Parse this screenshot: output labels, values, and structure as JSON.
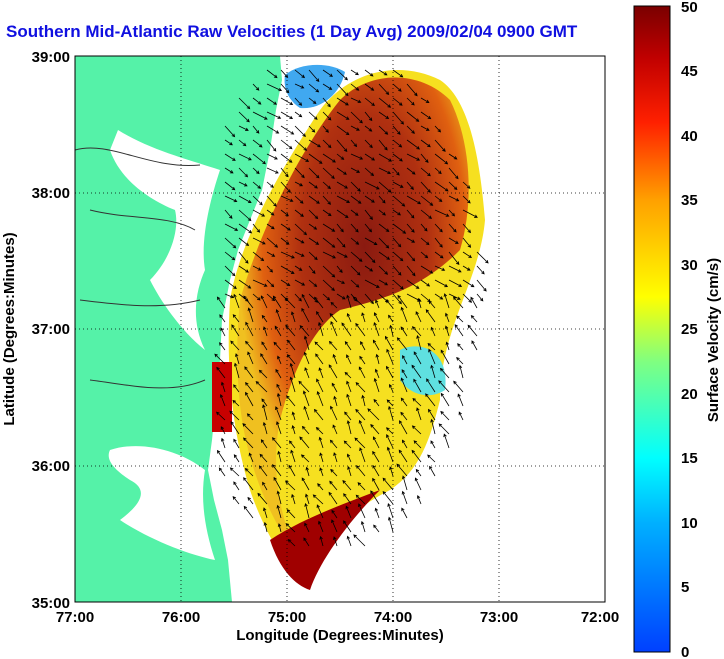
{
  "title": "Southern Mid-Atlantic Raw Velocities (1 Day Avg) 2009/02/04 0900 GMT",
  "map": {
    "xlabel": "Longitude (Degrees:Minutes)",
    "ylabel": "Latitude (Degrees:Minutes)",
    "lon_ticks": [
      "77:00",
      "76:00",
      "75:00",
      "74:00",
      "73:00",
      "72:00"
    ],
    "lat_ticks": [
      "39:00",
      "38:00",
      "37:00",
      "36:00",
      "35:00"
    ],
    "land_color": "#55f2a8",
    "grid": "dotted"
  },
  "colorbar": {
    "label": "Surface Velocity (cm/s)",
    "min": 0,
    "max": 50,
    "ticks": [
      "50",
      "45",
      "40",
      "35",
      "30",
      "25",
      "20",
      "15",
      "10",
      "5",
      "0"
    ]
  }
}
